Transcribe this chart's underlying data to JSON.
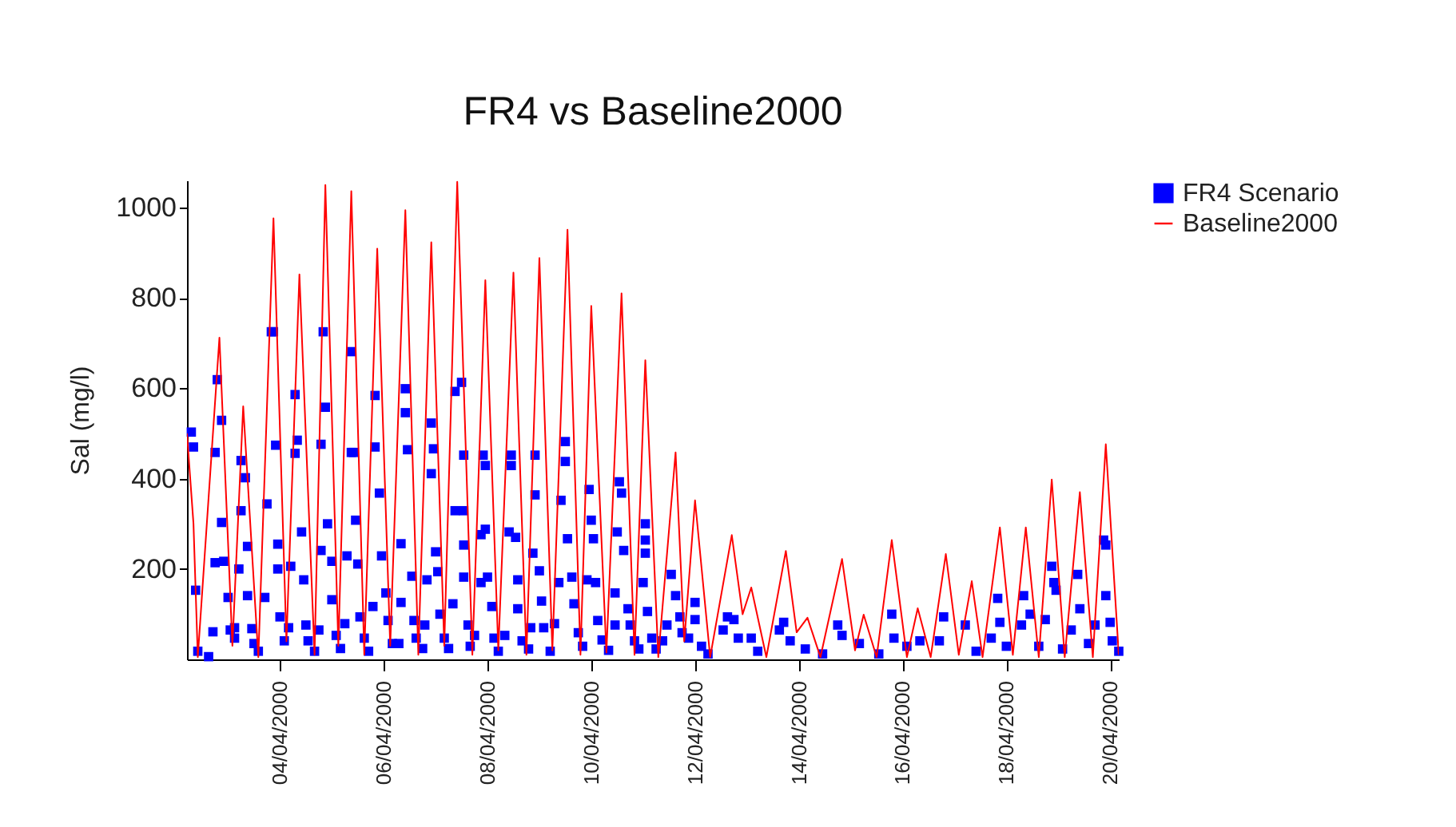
{
  "chart_data": {
    "type": "scatter",
    "title": "FR4 vs Baseline2000",
    "ylabel": "Sal (mg/l)",
    "legend": "top right",
    "grid": false,
    "xlim": [
      "2000-04-02T05:00",
      "2000-04-20T04:00"
    ],
    "xticks": [
      {
        "value": "2000-04-04",
        "label": "04/04/2000"
      },
      {
        "value": "2000-04-06",
        "label": "06/04/2000"
      },
      {
        "value": "2000-04-08",
        "label": "08/04/2000"
      },
      {
        "value": "2000-04-10",
        "label": "10/04/2000"
      },
      {
        "value": "2000-04-12",
        "label": "12/04/2000"
      },
      {
        "value": "2000-04-14",
        "label": "14/04/2000"
      },
      {
        "value": "2000-04-16",
        "label": "16/04/2000"
      },
      {
        "value": "2000-04-18",
        "label": "18/04/2000"
      },
      {
        "value": "2000-04-20",
        "label": "20/04/2000"
      }
    ],
    "ylim": [
      0,
      1060
    ],
    "yticks": [
      200,
      400,
      600,
      800,
      1000
    ],
    "series": [
      {
        "name": "FR4 Scenario",
        "marker": "square",
        "color": "#0000ff",
        "x": [
          "2000-04-02T07:00",
          "2000-04-02T08:00",
          "2000-04-02T09:00",
          "2000-04-02T10:00",
          "2000-04-02T15:00",
          "2000-04-02T17:00",
          "2000-04-02T18:00",
          "2000-04-02T18:00",
          "2000-04-02T19:00",
          "2000-04-02T21:00",
          "2000-04-02T21:00",
          "2000-04-02T22:00",
          "2000-04-03T00:00",
          "2000-04-03T01:00",
          "2000-04-03T03:00",
          "2000-04-03T03:00",
          "2000-04-03T05:00",
          "2000-04-03T06:00",
          "2000-04-03T06:00",
          "2000-04-03T08:00",
          "2000-04-03T09:00",
          "2000-04-03T09:00",
          "2000-04-03T11:00",
          "2000-04-03T12:00",
          "2000-04-03T14:00",
          "2000-04-03T17:00",
          "2000-04-03T18:00",
          "2000-04-03T20:00",
          "2000-04-03T21:00",
          "2000-04-03T22:00",
          "2000-04-03T23:00",
          "2000-04-03T23:00",
          "2000-04-04T00:00",
          "2000-04-04T02:00",
          "2000-04-04T04:00",
          "2000-04-04T05:00",
          "2000-04-04T07:00",
          "2000-04-04T07:00",
          "2000-04-04T08:00",
          "2000-04-04T10:00",
          "2000-04-04T11:00",
          "2000-04-04T12:00",
          "2000-04-04T13:00",
          "2000-04-04T16:00",
          "2000-04-04T18:00",
          "2000-04-04T19:00",
          "2000-04-04T19:00",
          "2000-04-04T20:00",
          "2000-04-04T21:00",
          "2000-04-04T22:00",
          "2000-04-05T00:00",
          "2000-04-05T00:00",
          "2000-04-05T02:00",
          "2000-04-05T04:00",
          "2000-04-05T06:00",
          "2000-04-05T07:00",
          "2000-04-05T09:00",
          "2000-04-05T09:00",
          "2000-04-05T10:00",
          "2000-04-05T11:00",
          "2000-04-05T12:00",
          "2000-04-05T13:00",
          "2000-04-05T15:00",
          "2000-04-05T17:00",
          "2000-04-05T19:00",
          "2000-04-05T20:00",
          "2000-04-05T20:00",
          "2000-04-05T22:00",
          "2000-04-05T23:00",
          "2000-04-06T01:00",
          "2000-04-06T02:00",
          "2000-04-06T04:00",
          "2000-04-06T07:00",
          "2000-04-06T08:00",
          "2000-04-06T08:00",
          "2000-04-06T10:00",
          "2000-04-06T10:00",
          "2000-04-06T11:00",
          "2000-04-06T13:00",
          "2000-04-06T14:00",
          "2000-04-06T15:00",
          "2000-04-06T18:00",
          "2000-04-06T19:00",
          "2000-04-06T20:00",
          "2000-04-06T22:00",
          "2000-04-06T22:00",
          "2000-04-06T23:00",
          "2000-04-07T00:00",
          "2000-04-07T01:00",
          "2000-04-07T02:00",
          "2000-04-07T04:00",
          "2000-04-07T06:00",
          "2000-04-07T08:00",
          "2000-04-07T09:00",
          "2000-04-07T09:00",
          "2000-04-07T12:00",
          "2000-04-07T13:00",
          "2000-04-07T13:00",
          "2000-04-07T13:00",
          "2000-04-07T13:00",
          "2000-04-07T15:00",
          "2000-04-07T16:00",
          "2000-04-07T18:00",
          "2000-04-07T21:00",
          "2000-04-07T21:00",
          "2000-04-07T22:00",
          "2000-04-07T23:00",
          "2000-04-07T23:00",
          "2000-04-08T00:00",
          "2000-04-08T02:00",
          "2000-04-08T03:00",
          "2000-04-08T05:00",
          "2000-04-08T08:00",
          "2000-04-08T10:00",
          "2000-04-08T11:00",
          "2000-04-08T11:00",
          "2000-04-08T13:00",
          "2000-04-08T14:00",
          "2000-04-08T14:00",
          "2000-04-08T16:00",
          "2000-04-08T19:00",
          "2000-04-08T20:00",
          "2000-04-08T21:00",
          "2000-04-08T22:00",
          "2000-04-08T22:00",
          "2000-04-09T00:00",
          "2000-04-09T01:00",
          "2000-04-09T02:00",
          "2000-04-09T05:00",
          "2000-04-09T07:00",
          "2000-04-09T09:00",
          "2000-04-09T10:00",
          "2000-04-09T12:00",
          "2000-04-09T12:00",
          "2000-04-09T13:00",
          "2000-04-09T15:00",
          "2000-04-09T16:00",
          "2000-04-09T18:00",
          "2000-04-09T20:00",
          "2000-04-09T22:00",
          "2000-04-09T23:00",
          "2000-04-10T00:00",
          "2000-04-10T01:00",
          "2000-04-10T02:00",
          "2000-04-10T03:00",
          "2000-04-10T05:00",
          "2000-04-10T08:00",
          "2000-04-10T11:00",
          "2000-04-10T11:00",
          "2000-04-10T12:00",
          "2000-04-10T13:00",
          "2000-04-10T14:00",
          "2000-04-10T15:00",
          "2000-04-10T17:00",
          "2000-04-10T18:00",
          "2000-04-10T20:00",
          "2000-04-10T22:00",
          "2000-04-11T00:00",
          "2000-04-11T01:00",
          "2000-04-11T01:00",
          "2000-04-11T01:00",
          "2000-04-11T02:00",
          "2000-04-11T04:00",
          "2000-04-11T06:00",
          "2000-04-11T09:00",
          "2000-04-11T11:00",
          "2000-04-11T13:00",
          "2000-04-11T15:00",
          "2000-04-11T17:00",
          "2000-04-11T18:00",
          "2000-04-11T21:00",
          "2000-04-12T00:00",
          "2000-04-12T00:00",
          "2000-04-12T03:00",
          "2000-04-12T06:00",
          "2000-04-12T13:00",
          "2000-04-12T15:00",
          "2000-04-12T18:00",
          "2000-04-12T20:00",
          "2000-04-13T02:00",
          "2000-04-13T05:00",
          "2000-04-13T15:00",
          "2000-04-13T17:00",
          "2000-04-13T20:00",
          "2000-04-14T03:00",
          "2000-04-14T11:00",
          "2000-04-14T18:00",
          "2000-04-14T20:00",
          "2000-04-15T04:00",
          "2000-04-15T13:00",
          "2000-04-15T19:00",
          "2000-04-15T20:00",
          "2000-04-16T02:00",
          "2000-04-16T08:00",
          "2000-04-16T17:00",
          "2000-04-16T19:00",
          "2000-04-17T05:00",
          "2000-04-17T10:00",
          "2000-04-17T17:00",
          "2000-04-17T20:00",
          "2000-04-17T21:00",
          "2000-04-18T00:00",
          "2000-04-18T07:00",
          "2000-04-18T08:00",
          "2000-04-18T11:00",
          "2000-04-18T15:00",
          "2000-04-18T18:00",
          "2000-04-18T21:00",
          "2000-04-18T22:00",
          "2000-04-18T23:00",
          "2000-04-19T02:00",
          "2000-04-19T06:00",
          "2000-04-19T09:00",
          "2000-04-19T10:00",
          "2000-04-19T14:00",
          "2000-04-19T17:00",
          "2000-04-19T21:00",
          "2000-04-19T22:00",
          "2000-04-19T22:00",
          "2000-04-20T00:00",
          "2000-04-20T01:00",
          "2000-04-20T04:00"
        ],
        "values": [
          503,
          470,
          153,
          18,
          6,
          61,
          214,
          458,
          619,
          529,
          303,
          217,
          137,
          65,
          47,
          70,
          200,
          329,
          440,
          402,
          250,
          141,
          68,
          35,
          18,
          137,
          344,
          725,
          725,
          474,
          255,
          200,
          94,
          41,
          70,
          206,
          456,
          586,
          485,
          282,
          176,
          76,
          41,
          18,
          65,
          241,
          476,
          725,
          558,
          300,
          217,
          132,
          53,
          24,
          79,
          229,
          458,
          681,
          458,
          308,
          211,
          94,
          47,
          18,
          117,
          470,
          584,
          368,
          229,
          147,
          86,
          35,
          35,
          126,
          256,
          546,
          599,
          464,
          184,
          86,
          47,
          24,
          76,
          176,
          523,
          411,
          466,
          238,
          194,
          100,
          47,
          24,
          123,
          329,
          593,
          613,
          452,
          329,
          253,
          182,
          76,
          29,
          53,
          170,
          276,
          452,
          429,
          288,
          182,
          117,
          47,
          18,
          53,
          282,
          452,
          429,
          270,
          176,
          112,
          41,
          23,
          70,
          235,
          364,
          452,
          196,
          129,
          70,
          18,
          79,
          170,
          352,
          482,
          438,
          267,
          182,
          123,
          59,
          29,
          176,
          376,
          308,
          267,
          170,
          86,
          43,
          20,
          76,
          147,
          282,
          393,
          368,
          241,
          112,
          76,
          41,
          23,
          170,
          300,
          264,
          235,
          106,
          47,
          23,
          41,
          76,
          188,
          141,
          94,
          59,
          47,
          126,
          88,
          29,
          12,
          65,
          94,
          88,
          47,
          47,
          18,
          65,
          82,
          41,
          23,
          12,
          76,
          53,
          35,
          12,
          100,
          47,
          29,
          41,
          41,
          94,
          76,
          18,
          47,
          135,
          82,
          29,
          76,
          141,
          100,
          29,
          88,
          206,
          170,
          153,
          23,
          65,
          188,
          112,
          35,
          76,
          264,
          253,
          141,
          82,
          41,
          18
        ]
      },
      {
        "name": "Baseline2000",
        "type": "line",
        "line_style": "solid",
        "color": "#ff0000",
        "x": [
          "2000-04-02T05:00",
          "2000-04-02T08:00",
          "2000-04-02T10:00",
          "2000-04-02T20:00",
          "2000-04-03T02:00",
          "2000-04-03T07:00",
          "2000-04-03T14:00",
          "2000-04-03T21:00",
          "2000-04-04T03:00",
          "2000-04-04T09:00",
          "2000-04-04T16:00",
          "2000-04-04T21:00",
          "2000-04-05T03:00",
          "2000-04-05T09:00",
          "2000-04-05T15:00",
          "2000-04-05T21:00",
          "2000-04-06T03:00",
          "2000-04-06T10:00",
          "2000-04-06T16:00",
          "2000-04-06T22:00",
          "2000-04-07T04:00",
          "2000-04-07T10:00",
          "2000-04-07T17:00",
          "2000-04-07T23:00",
          "2000-04-08T05:00",
          "2000-04-08T12:00",
          "2000-04-08T18:00",
          "2000-04-09T00:00",
          "2000-04-09T06:00",
          "2000-04-09T13:00",
          "2000-04-09T19:00",
          "2000-04-10T00:00",
          "2000-04-10T07:00",
          "2000-04-10T14:00",
          "2000-04-10T20:00",
          "2000-04-11T01:00",
          "2000-04-11T07:00",
          "2000-04-11T15:00",
          "2000-04-11T19:00",
          "2000-04-12T00:00",
          "2000-04-12T07:00",
          "2000-04-12T17:00",
          "2000-04-12T22:00",
          "2000-04-13T02:00",
          "2000-04-13T09:00",
          "2000-04-13T18:00",
          "2000-04-13T23:00",
          "2000-04-14T04:00",
          "2000-04-14T10:00",
          "2000-04-14T20:00",
          "2000-04-15T02:00",
          "2000-04-15T06:00",
          "2000-04-15T12:00",
          "2000-04-15T19:00",
          "2000-04-16T02:00",
          "2000-04-16T07:00",
          "2000-04-16T13:00",
          "2000-04-16T20:00",
          "2000-04-17T02:00",
          "2000-04-17T08:00",
          "2000-04-17T13:00",
          "2000-04-17T21:00",
          "2000-04-18T03:00",
          "2000-04-18T09:00",
          "2000-04-18T15:00",
          "2000-04-18T21:00",
          "2000-04-19T03:00",
          "2000-04-19T10:00",
          "2000-04-19T16:00",
          "2000-04-19T22:00",
          "2000-04-20T04:00"
        ],
        "values": [
          500,
          300,
          5,
          712,
          30,
          560,
          5,
          976,
          40,
          852,
          10,
          1050,
          30,
          1036,
          10,
          909,
          30,
          994,
          10,
          923,
          30,
          1057,
          10,
          839,
          20,
          856,
          10,
          888,
          20,
          951,
          10,
          782,
          15,
          810,
          10,
          662,
          5,
          458,
          40,
          352,
          5,
          275,
          100,
          159,
          5,
          240,
          60,
          92,
          5,
          222,
          20,
          99,
          5,
          264,
          5,
          113,
          5,
          233,
          10,
          173,
          5,
          292,
          10,
          292,
          5,
          398,
          5,
          370,
          5,
          476,
          10
        ]
      }
    ]
  }
}
